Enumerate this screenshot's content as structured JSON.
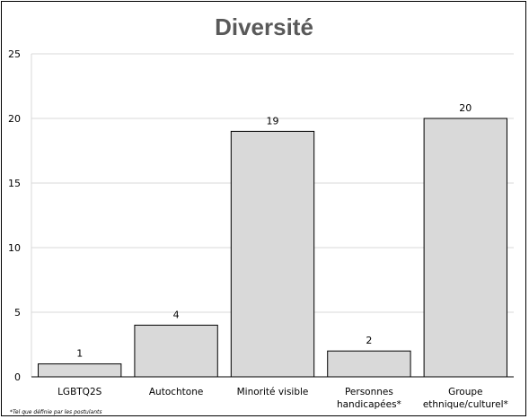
{
  "chart_data": {
    "type": "bar",
    "title": "Diversité",
    "categories": [
      "LGBTQ2S",
      "Autochtone",
      "Minorité visible",
      "Personnes handicapées*",
      "Groupe ethnique/culturel*"
    ],
    "category_lines": [
      [
        "LGBTQ2S"
      ],
      [
        "Autochtone"
      ],
      [
        "Minorité visible"
      ],
      [
        "Personnes",
        "handicapées*"
      ],
      [
        "Groupe",
        "ethnique/culturel*"
      ]
    ],
    "values": [
      1,
      4,
      19,
      2,
      20
    ],
    "ylim": [
      0,
      25
    ],
    "yticks": [
      0,
      5,
      10,
      15,
      20,
      25
    ],
    "grid": true,
    "legend": "none",
    "bar_color": "#d9d9d9",
    "bar_edge_color": "#000000",
    "grid_color": "#d9d9d9",
    "title_color": "#595959"
  },
  "footnote": "*Tel que définie par les postulants"
}
